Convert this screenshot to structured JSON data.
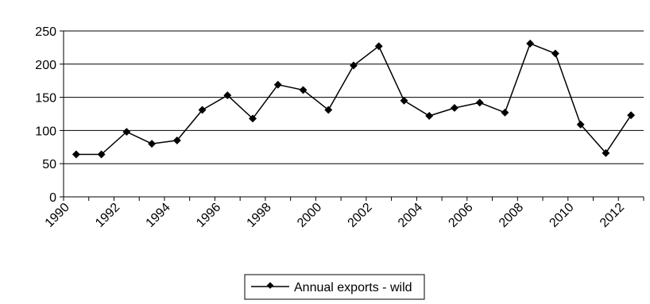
{
  "chart_data": {
    "type": "line",
    "title": "",
    "xlabel": "",
    "ylabel": "",
    "x": [
      1990,
      1991,
      1992,
      1993,
      1994,
      1995,
      1996,
      1997,
      1998,
      1999,
      2000,
      2001,
      2002,
      2003,
      2004,
      2005,
      2006,
      2007,
      2008,
      2009,
      2010,
      2011,
      2012
    ],
    "series": [
      {
        "name": "Annual exports - wild",
        "values": [
          64,
          64,
          98,
          80,
          85,
          131,
          153,
          118,
          169,
          161,
          131,
          198,
          227,
          145,
          122,
          134,
          142,
          127,
          231,
          216,
          109,
          66,
          123
        ],
        "color": "#000000",
        "marker": "diamond"
      }
    ],
    "x_tick_labels": [
      "1990",
      "1992",
      "1994",
      "1996",
      "1998",
      "2000",
      "2002",
      "2004",
      "2006",
      "2008",
      "2010",
      "2012"
    ],
    "y_ticks": [
      0,
      50,
      100,
      150,
      200,
      250
    ],
    "ylim": [
      0,
      250
    ],
    "grid": "horizontal",
    "legend_position": "bottom-center"
  }
}
